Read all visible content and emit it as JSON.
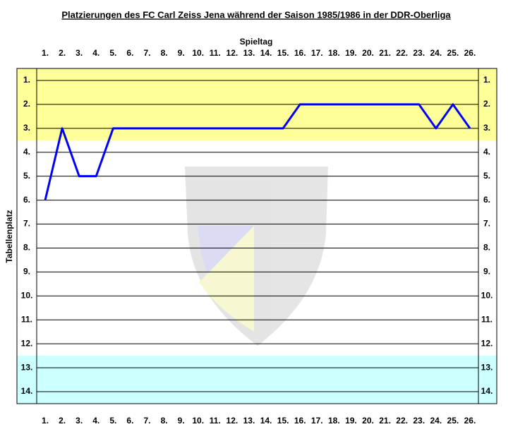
{
  "chart_data": {
    "type": "line",
    "title": "Platzierungen des FC Carl Zeiss Jena während der Saison 1985/1986 in der DDR-Oberliga",
    "x_label": "Spieltag",
    "y_label": "Tabellenplatz",
    "categories": [
      "1.",
      "2.",
      "3.",
      "4.",
      "5.",
      "6.",
      "7.",
      "8.",
      "9.",
      "10.",
      "11.",
      "12.",
      "13.",
      "14.",
      "15.",
      "16.",
      "17.",
      "18.",
      "19.",
      "20.",
      "21.",
      "22.",
      "23.",
      "24.",
      "25.",
      "26."
    ],
    "series": [
      {
        "name": "FC Carl Zeiss Jena",
        "color": "#0000ff",
        "values": [
          6,
          3,
          5,
          5,
          3,
          3,
          3,
          3,
          3,
          3,
          3,
          3,
          3,
          3,
          3,
          2,
          2,
          2,
          2,
          2,
          2,
          2,
          2,
          3,
          2,
          3
        ]
      }
    ],
    "ylim": [
      0.5,
      14.5
    ],
    "y_inverted": true,
    "yticks": [
      {
        "value": 1,
        "label": "1."
      },
      {
        "value": 2,
        "label": "2."
      },
      {
        "value": 3,
        "label": "3."
      },
      {
        "value": 4,
        "label": "4."
      },
      {
        "value": 5,
        "label": "5."
      },
      {
        "value": 6,
        "label": "6."
      },
      {
        "value": 7,
        "label": "7."
      },
      {
        "value": 8,
        "label": "8."
      },
      {
        "value": 9,
        "label": "9."
      },
      {
        "value": 10,
        "label": "10."
      },
      {
        "value": 11,
        "label": "11."
      },
      {
        "value": 12,
        "label": "12."
      },
      {
        "value": 13,
        "label": "13."
      },
      {
        "value": 14,
        "label": "14."
      }
    ],
    "bands": [
      {
        "from": 0.5,
        "to": 3.5,
        "color": "#ffff99"
      },
      {
        "from": 12.5,
        "to": 14.5,
        "color": "#ccffff"
      }
    ],
    "grid": true
  }
}
